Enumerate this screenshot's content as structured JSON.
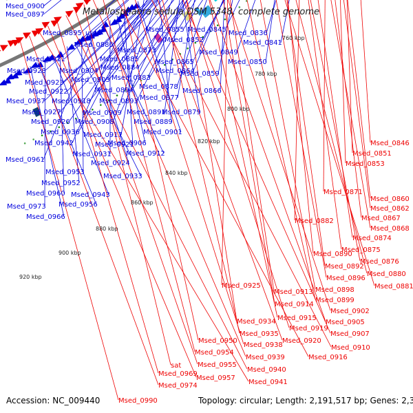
{
  "title": "Metallosphaera sedula DSM 5348, complete genome",
  "footer": {
    "accession": "Accession: NC_009440",
    "topology": "Topology: circular; Length: 2,191,517 bp; Genes: 2,303"
  },
  "colors": {
    "forward": "#0000dd",
    "reverse": "#ee0000",
    "backbone": "#777777",
    "dots": "#1a8a1a"
  },
  "ticks": [
    "760 kbp",
    "780 kbp",
    "800 kbp",
    "820 kbp",
    "840 kbp",
    "860 kbp",
    "880 kbp",
    "900 kbp",
    "920 kbp"
  ],
  "blue_labels": [
    "Msed_0900",
    "Msed_0897",
    "Msed_0895",
    "ureC",
    "Msed_0886",
    "Msed_0855",
    "Msed_0845",
    "Msed_0836",
    "Msed_0852",
    "Msed_0841",
    "Msed_0873",
    "Msed_0849",
    "Msed_0911",
    "Msed_0885",
    "Msed_0865",
    "Msed_0850",
    "Msed_0928",
    "Msed_0904",
    "Msed_0884",
    "Msed_0864",
    "Msed_0923",
    "Msed_0903",
    "Msed_0883",
    "Msed_0859",
    "Msed_0922",
    "Msed_0894",
    "Msed_0878",
    "Msed_0866",
    "Msed_0937",
    "Msed_0918",
    "Msed_0893",
    "Msed_0877",
    "Msed_0927",
    "Msed_0909",
    "Msed_0891",
    "Msed_0879",
    "Msed_0926",
    "Msed_0908",
    "Msed_0889",
    "Msed_0936",
    "Msed_0917",
    "Msed_0901",
    "Msed_0942",
    "Msed_0921",
    "Msed_0906",
    "Msed_0931",
    "Msed_0912",
    "Msed_0961",
    "Msed_0924",
    "Msed_0953",
    "Msed_0933",
    "Msed_0952",
    "Msed_0960",
    "Msed_0943",
    "Msed_0973",
    "Msed_0956",
    "Msed_0966"
  ],
  "red_labels": [
    "Msed_0846",
    "Msed_0851",
    "Msed_0853",
    "Msed_0871",
    "Msed_0860",
    "Msed_0862",
    "Msed_0867",
    "Msed_0882",
    "Msed_0868",
    "Msed_0874",
    "Msed_0875",
    "Msed_0876",
    "Msed_0890",
    "Msed_0892",
    "Msed_0880",
    "Msed_0896",
    "Msed_0881",
    "Msed_0898",
    "Msed_0925",
    "Msed_0899",
    "Msed_0913",
    "Msed_0914",
    "Msed_0902",
    "Msed_0915",
    "Msed_0905",
    "Msed_0934",
    "Msed_0919",
    "Msed_0907",
    "Msed_0935",
    "Msed_0920",
    "Msed_0910",
    "Msed_0938",
    "Msed_0950",
    "Msed_0916",
    "Msed_0954",
    "Msed_0939",
    "sat",
    "Msed_0955",
    "Msed_0940",
    "Msed_0969",
    "Msed_0957",
    "Msed_0941",
    "Msed_0974",
    "Msed_0990"
  ]
}
